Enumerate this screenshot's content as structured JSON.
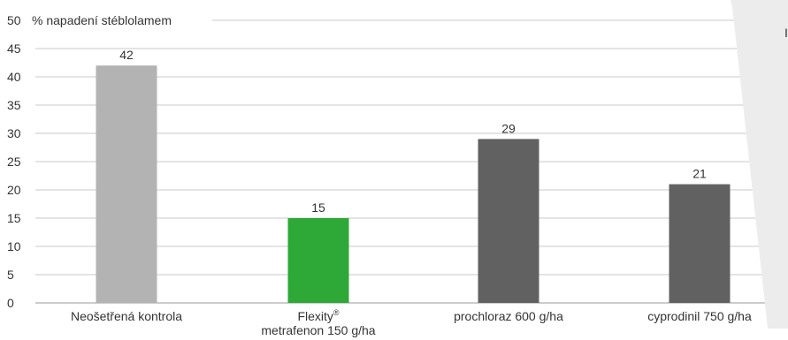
{
  "chart_data": {
    "type": "bar",
    "title": "% napadení stéblolamem",
    "categories": [
      {
        "lines": [
          "Neošetřená kontrola"
        ],
        "sup": ""
      },
      {
        "lines": [
          "Flexity",
          "metrafenon 150 g/ha"
        ],
        "sup": "®"
      },
      {
        "lines": [
          "prochloraz 600 g/ha"
        ],
        "sup": ""
      },
      {
        "lines": [
          "cyprodinil 750 g/ha"
        ],
        "sup": ""
      }
    ],
    "values": [
      42,
      15,
      29,
      21
    ],
    "value_labels": [
      "42",
      "15",
      "29",
      "21"
    ],
    "bar_colors": [
      "#b3b3b3",
      "#2ea836",
      "#616161",
      "#616161"
    ],
    "ylim": [
      0,
      50
    ],
    "yticks": [
      "0",
      "5",
      "10",
      "15",
      "20",
      "25",
      "30",
      "35",
      "40",
      "45",
      "50"
    ],
    "grid": true,
    "grid_color": "#c8c8c8",
    "right_edge_label": "I"
  }
}
